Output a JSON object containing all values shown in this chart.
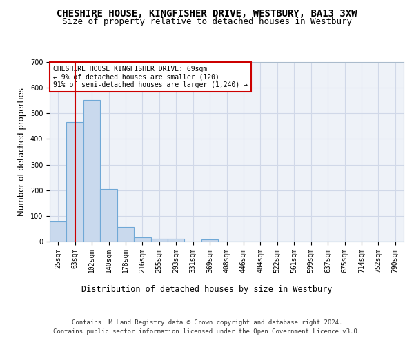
{
  "title1": "CHESHIRE HOUSE, KINGFISHER DRIVE, WESTBURY, BA13 3XW",
  "title2": "Size of property relative to detached houses in Westbury",
  "xlabel": "Distribution of detached houses by size in Westbury",
  "ylabel": "Number of detached properties",
  "footer1": "Contains HM Land Registry data © Crown copyright and database right 2024.",
  "footer2": "Contains public sector information licensed under the Open Government Licence v3.0.",
  "bar_labels": [
    "25sqm",
    "63sqm",
    "102sqm",
    "140sqm",
    "178sqm",
    "216sqm",
    "255sqm",
    "293sqm",
    "331sqm",
    "369sqm",
    "408sqm",
    "446sqm",
    "484sqm",
    "522sqm",
    "561sqm",
    "599sqm",
    "637sqm",
    "675sqm",
    "714sqm",
    "752sqm",
    "790sqm"
  ],
  "bar_values": [
    78,
    465,
    551,
    204,
    57,
    15,
    10,
    10,
    0,
    8,
    0,
    0,
    0,
    0,
    0,
    0,
    0,
    0,
    0,
    0,
    0
  ],
  "bar_color": "#c9d9ed",
  "bar_edge_color": "#6fa8d6",
  "grid_color": "#d0d8e8",
  "bg_color": "#eef2f8",
  "vline_x": 1,
  "vline_color": "#cc0000",
  "legend_text1": "CHESHIRE HOUSE KINGFISHER DRIVE: 69sqm",
  "legend_text2": "← 9% of detached houses are smaller (120)",
  "legend_text3": "91% of semi-detached houses are larger (1,240) →",
  "legend_box_color": "#cc0000",
  "ylim": [
    0,
    700
  ],
  "yticks": [
    0,
    100,
    200,
    300,
    400,
    500,
    600,
    700
  ],
  "title_fontsize": 10,
  "subtitle_fontsize": 9,
  "axis_label_fontsize": 8.5,
  "tick_fontsize": 7,
  "footer_fontsize": 6.5,
  "legend_fontsize": 7
}
